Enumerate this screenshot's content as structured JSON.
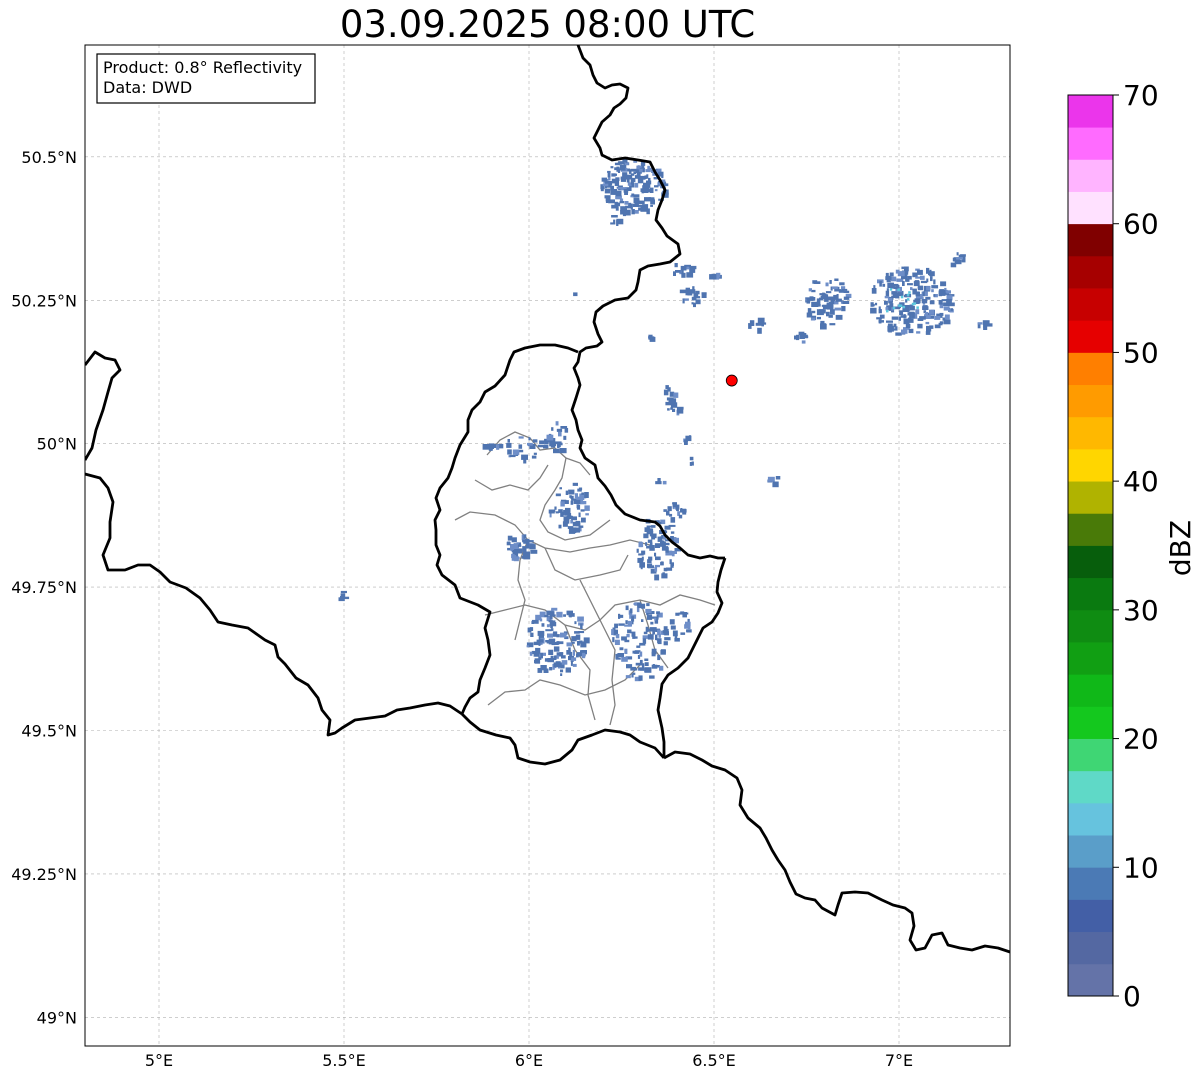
{
  "title": "03.09.2025 08:00 UTC",
  "info_box": {
    "product": "Product: 0.8° Reflectivity",
    "data": "Data: DWD"
  },
  "map": {
    "lon_range": [
      4.8,
      7.3
    ],
    "lat_range": [
      48.95,
      50.695
    ],
    "x_ticks": [
      {
        "value": 5.0,
        "label": "5°E"
      },
      {
        "value": 5.5,
        "label": "5.5°E"
      },
      {
        "value": 6.0,
        "label": "6°E"
      },
      {
        "value": 6.5,
        "label": "6.5°E"
      },
      {
        "value": 7.0,
        "label": "7°E"
      }
    ],
    "y_ticks": [
      {
        "value": 49.0,
        "label": "49°N"
      },
      {
        "value": 49.25,
        "label": "49.25°N"
      },
      {
        "value": 49.5,
        "label": "49.5°N"
      },
      {
        "value": 49.75,
        "label": "49.75°N"
      },
      {
        "value": 50.0,
        "label": "50°N"
      },
      {
        "value": 50.25,
        "label": "50.25°N"
      },
      {
        "value": 50.5,
        "label": "50.5°N"
      }
    ],
    "grid": true,
    "marker": {
      "lon": 6.548,
      "lat": 50.11,
      "color": "#ff0000"
    },
    "colors": {
      "border": "#000000",
      "admin": "#808080",
      "echo_main": "#4f74b0",
      "echo_light": "#6e8ec8",
      "echo_core": "#5cc7dd"
    }
  },
  "colorbar": {
    "label": "dBZ",
    "min": 0,
    "max": 70,
    "ticks": [
      0,
      10,
      20,
      30,
      40,
      50,
      60,
      70
    ],
    "bands": [
      "#6473a8",
      "#5468a2",
      "#435fa6",
      "#4b7ab5",
      "#5a9ec9",
      "#66c3de",
      "#5fd9c7",
      "#3fd674",
      "#14c81e",
      "#10b818",
      "#119f13",
      "#0f8c12",
      "#0a7a10",
      "#075e0c",
      "#497a08",
      "#b0b300",
      "#ffd600",
      "#ffb800",
      "#ff9b00",
      "#ff7f00",
      "#e60000",
      "#c70000",
      "#a60000",
      "#800000",
      "#ffe1ff",
      "#ffb4ff",
      "#ff6bff",
      "#eb35eb"
    ]
  }
}
